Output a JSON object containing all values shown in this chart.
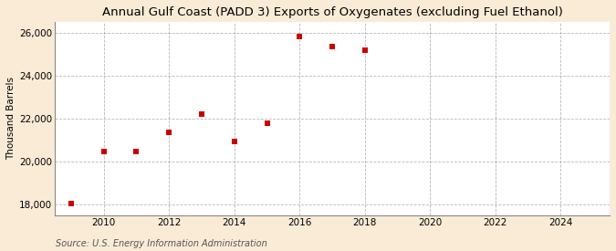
{
  "title": "Annual Gulf Coast (PADD 3) Exports of Oxygenates (excluding Fuel Ethanol)",
  "ylabel": "Thousand Barrels",
  "source": "Source: U.S. Energy Information Administration",
  "x": [
    2009,
    2010,
    2011,
    2012,
    2013,
    2014,
    2015,
    2016,
    2017,
    2018
  ],
  "y": [
    18050,
    20480,
    20450,
    21350,
    22200,
    20950,
    21800,
    25800,
    25370,
    25200
  ],
  "xlim": [
    2008.5,
    2025.5
  ],
  "ylim": [
    17500,
    26500
  ],
  "yticks": [
    18000,
    20000,
    22000,
    24000,
    26000
  ],
  "xticks": [
    2010,
    2012,
    2014,
    2016,
    2018,
    2020,
    2022,
    2024
  ],
  "marker_color": "#cc0000",
  "marker": "s",
  "marker_size": 5,
  "background_color": "#faebd7",
  "plot_bg_color": "#ffffff",
  "grid_color": "#999999",
  "title_fontsize": 9.5,
  "label_fontsize": 7.5,
  "tick_fontsize": 7.5,
  "source_fontsize": 7
}
